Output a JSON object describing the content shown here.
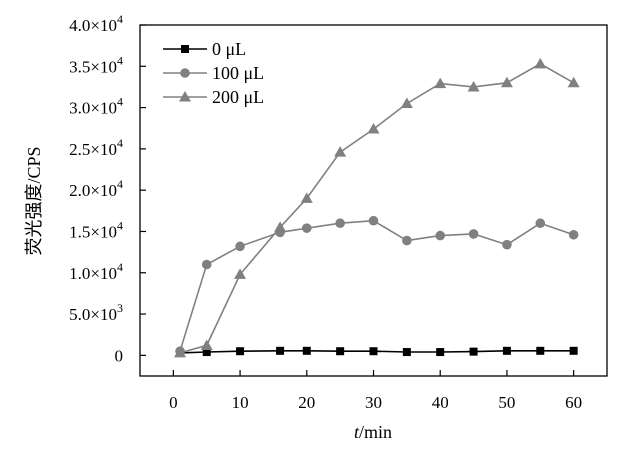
{
  "chart_data": {
    "type": "line",
    "xlabel_italic": "t",
    "xlabel_rest": "/min",
    "ylabel": "荧光强度/CPS",
    "xlim": [
      -5,
      65
    ],
    "ylim": [
      -2500,
      40000
    ],
    "x_ticks": [
      0,
      10,
      20,
      30,
      40,
      50,
      60
    ],
    "y_ticks": [
      {
        "value": 0,
        "mantissa": "0",
        "exp": ""
      },
      {
        "value": 5000,
        "mantissa": "5.0×10",
        "exp": "3"
      },
      {
        "value": 10000,
        "mantissa": "1.0×10",
        "exp": "4"
      },
      {
        "value": 15000,
        "mantissa": "1.5×10",
        "exp": "4"
      },
      {
        "value": 20000,
        "mantissa": "2.0×10",
        "exp": "4"
      },
      {
        "value": 25000,
        "mantissa": "2.5×10",
        "exp": "4"
      },
      {
        "value": 30000,
        "mantissa": "3.0×10",
        "exp": "4"
      },
      {
        "value": 35000,
        "mantissa": "3.5×10",
        "exp": "4"
      },
      {
        "value": 40000,
        "mantissa": "4.0×10",
        "exp": "4"
      }
    ],
    "grid": false,
    "legend_position": "top-left",
    "x": [
      1,
      5,
      10,
      16,
      20,
      25,
      30,
      35,
      40,
      45,
      50,
      55,
      60
    ],
    "series": [
      {
        "name": "0 μL",
        "marker": "square",
        "color": "#000000",
        "values": [
          300,
          400,
          500,
          550,
          550,
          500,
          500,
          400,
          400,
          450,
          550,
          550,
          550
        ]
      },
      {
        "name": "100 μL",
        "marker": "circle",
        "color": "#808080",
        "values": [
          500,
          11000,
          13200,
          14900,
          15400,
          16000,
          16300,
          13900,
          14500,
          14700,
          13400,
          16000,
          14600
        ]
      },
      {
        "name": "200 μL",
        "marker": "triangle",
        "color": "#808080",
        "values": [
          300,
          1200,
          9800,
          15500,
          19000,
          24600,
          27400,
          30500,
          32900,
          32500,
          33000,
          35300,
          33000
        ]
      }
    ]
  }
}
